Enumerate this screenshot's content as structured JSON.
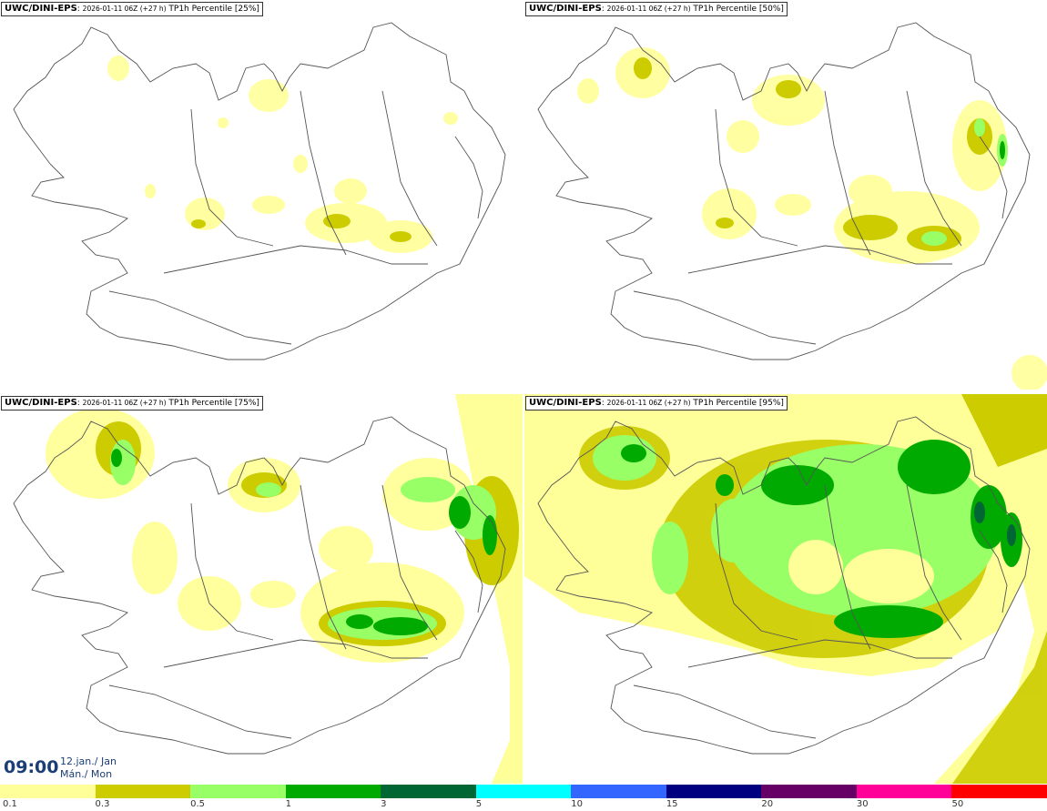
{
  "panels": [
    {
      "model": "UWC/DINI-EPS",
      "run": "2026-01-11 06Z (+27 h)",
      "field": "TP1h Percentile [25%]"
    },
    {
      "model": "UWC/DINI-EPS",
      "run": "2026-01-11 06Z (+27 h)",
      "field": "TP1h Percentile [50%]"
    },
    {
      "model": "UWC/DINI-EPS",
      "run": "2026-01-11 06Z (+27 h)",
      "field": "TP1h Percentile [75%]"
    },
    {
      "model": "UWC/DINI-EPS",
      "run": "2026-01-11 06Z (+27 h)",
      "field": "TP1h Percentile [95%]"
    }
  ],
  "valid_time": {
    "time": "09:00",
    "date_line1": "12.jan./ Jan",
    "date_line2": "Mán./ Mon"
  },
  "colorscale": {
    "colors": [
      "#ffff99",
      "#cccc00",
      "#99ff66",
      "#00aa00",
      "#006633",
      "#00ffff",
      "#3366ff",
      "#000080",
      "#660066",
      "#ff0099",
      "#ff0000"
    ],
    "labels": [
      "0.1",
      "0.3",
      "0.5",
      "1",
      "3",
      "5",
      "10",
      "15",
      "20",
      "30",
      "50"
    ]
  }
}
